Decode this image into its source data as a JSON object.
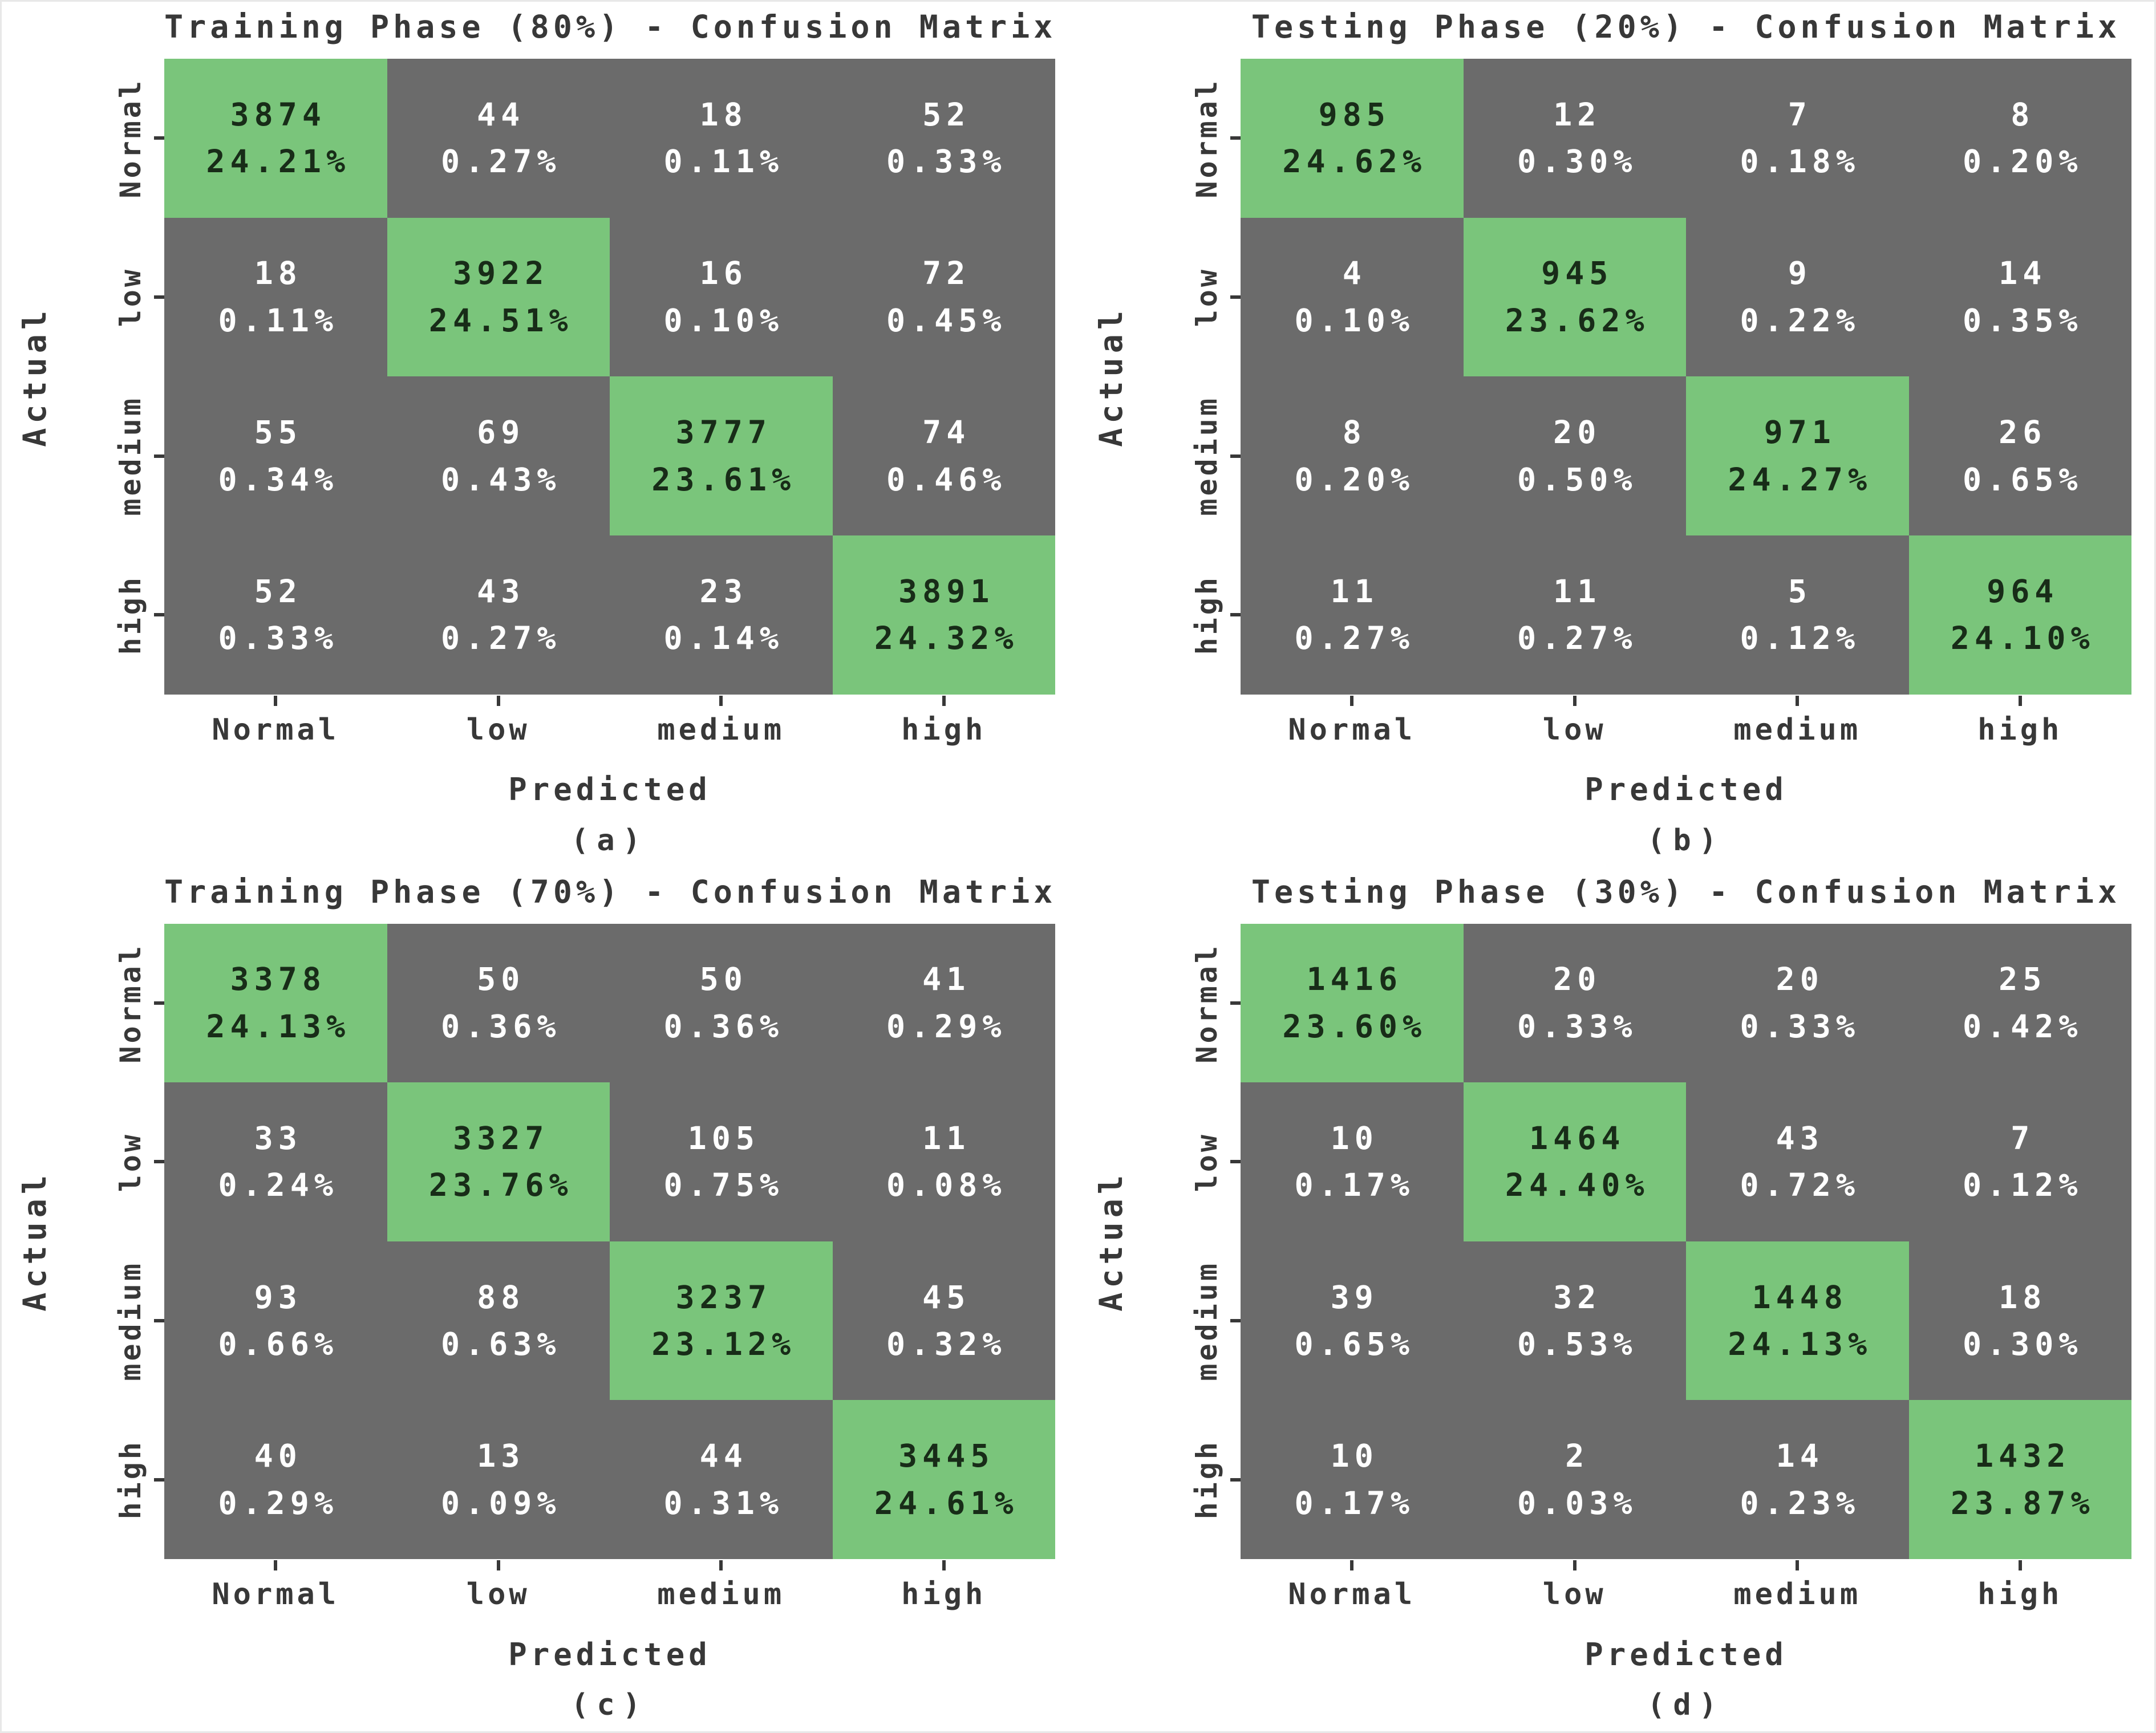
{
  "colors": {
    "diagonal_green": "#7ac57b",
    "off_diagonal_gray": "#6b6b6b",
    "text_on_green": "#182c18",
    "text_on_gray": "#ffffff",
    "axis_text": "#383838"
  },
  "chart_data": [
    {
      "type": "heatmap",
      "caption": "(a)",
      "title": "Training Phase (80%) - Confusion Matrix",
      "xlabel": "Predicted",
      "ylabel": "Actual",
      "x_categories": [
        "Normal",
        "low",
        "medium",
        "high"
      ],
      "y_categories": [
        "Normal",
        "low",
        "medium",
        "high"
      ],
      "cells": [
        [
          {
            "count": 3874,
            "pct": "24.21%"
          },
          {
            "count": 44,
            "pct": "0.27%"
          },
          {
            "count": 18,
            "pct": "0.11%"
          },
          {
            "count": 52,
            "pct": "0.33%"
          }
        ],
        [
          {
            "count": 18,
            "pct": "0.11%"
          },
          {
            "count": 3922,
            "pct": "24.51%"
          },
          {
            "count": 16,
            "pct": "0.10%"
          },
          {
            "count": 72,
            "pct": "0.45%"
          }
        ],
        [
          {
            "count": 55,
            "pct": "0.34%"
          },
          {
            "count": 69,
            "pct": "0.43%"
          },
          {
            "count": 3777,
            "pct": "23.61%"
          },
          {
            "count": 74,
            "pct": "0.46%"
          }
        ],
        [
          {
            "count": 52,
            "pct": "0.33%"
          },
          {
            "count": 43,
            "pct": "0.27%"
          },
          {
            "count": 23,
            "pct": "0.14%"
          },
          {
            "count": 3891,
            "pct": "24.32%"
          }
        ]
      ]
    },
    {
      "type": "heatmap",
      "caption": "(b)",
      "title": "Testing Phase (20%) - Confusion Matrix",
      "xlabel": "Predicted",
      "ylabel": "Actual",
      "x_categories": [
        "Normal",
        "low",
        "medium",
        "high"
      ],
      "y_categories": [
        "Normal",
        "low",
        "medium",
        "high"
      ],
      "cells": [
        [
          {
            "count": 985,
            "pct": "24.62%"
          },
          {
            "count": 12,
            "pct": "0.30%"
          },
          {
            "count": 7,
            "pct": "0.18%"
          },
          {
            "count": 8,
            "pct": "0.20%"
          }
        ],
        [
          {
            "count": 4,
            "pct": "0.10%"
          },
          {
            "count": 945,
            "pct": "23.62%"
          },
          {
            "count": 9,
            "pct": "0.22%"
          },
          {
            "count": 14,
            "pct": "0.35%"
          }
        ],
        [
          {
            "count": 8,
            "pct": "0.20%"
          },
          {
            "count": 20,
            "pct": "0.50%"
          },
          {
            "count": 971,
            "pct": "24.27%"
          },
          {
            "count": 26,
            "pct": "0.65%"
          }
        ],
        [
          {
            "count": 11,
            "pct": "0.27%"
          },
          {
            "count": 11,
            "pct": "0.27%"
          },
          {
            "count": 5,
            "pct": "0.12%"
          },
          {
            "count": 964,
            "pct": "24.10%"
          }
        ]
      ]
    },
    {
      "type": "heatmap",
      "caption": "(c)",
      "title": "Training Phase (70%) - Confusion Matrix",
      "xlabel": "Predicted",
      "ylabel": "Actual",
      "x_categories": [
        "Normal",
        "low",
        "medium",
        "high"
      ],
      "y_categories": [
        "Normal",
        "low",
        "medium",
        "high"
      ],
      "cells": [
        [
          {
            "count": 3378,
            "pct": "24.13%"
          },
          {
            "count": 50,
            "pct": "0.36%"
          },
          {
            "count": 50,
            "pct": "0.36%"
          },
          {
            "count": 41,
            "pct": "0.29%"
          }
        ],
        [
          {
            "count": 33,
            "pct": "0.24%"
          },
          {
            "count": 3327,
            "pct": "23.76%"
          },
          {
            "count": 105,
            "pct": "0.75%"
          },
          {
            "count": 11,
            "pct": "0.08%"
          }
        ],
        [
          {
            "count": 93,
            "pct": "0.66%"
          },
          {
            "count": 88,
            "pct": "0.63%"
          },
          {
            "count": 3237,
            "pct": "23.12%"
          },
          {
            "count": 45,
            "pct": "0.32%"
          }
        ],
        [
          {
            "count": 40,
            "pct": "0.29%"
          },
          {
            "count": 13,
            "pct": "0.09%"
          },
          {
            "count": 44,
            "pct": "0.31%"
          },
          {
            "count": 3445,
            "pct": "24.61%"
          }
        ]
      ]
    },
    {
      "type": "heatmap",
      "caption": "(d)",
      "title": "Testing Phase (30%) - Confusion Matrix",
      "xlabel": "Predicted",
      "ylabel": "Actual",
      "x_categories": [
        "Normal",
        "low",
        "medium",
        "high"
      ],
      "y_categories": [
        "Normal",
        "low",
        "medium",
        "high"
      ],
      "cells": [
        [
          {
            "count": 1416,
            "pct": "23.60%"
          },
          {
            "count": 20,
            "pct": "0.33%"
          },
          {
            "count": 20,
            "pct": "0.33%"
          },
          {
            "count": 25,
            "pct": "0.42%"
          }
        ],
        [
          {
            "count": 10,
            "pct": "0.17%"
          },
          {
            "count": 1464,
            "pct": "24.40%"
          },
          {
            "count": 43,
            "pct": "0.72%"
          },
          {
            "count": 7,
            "pct": "0.12%"
          }
        ],
        [
          {
            "count": 39,
            "pct": "0.65%"
          },
          {
            "count": 32,
            "pct": "0.53%"
          },
          {
            "count": 1448,
            "pct": "24.13%"
          },
          {
            "count": 18,
            "pct": "0.30%"
          }
        ],
        [
          {
            "count": 10,
            "pct": "0.17%"
          },
          {
            "count": 2,
            "pct": "0.03%"
          },
          {
            "count": 14,
            "pct": "0.23%"
          },
          {
            "count": 1432,
            "pct": "23.87%"
          }
        ]
      ]
    }
  ]
}
